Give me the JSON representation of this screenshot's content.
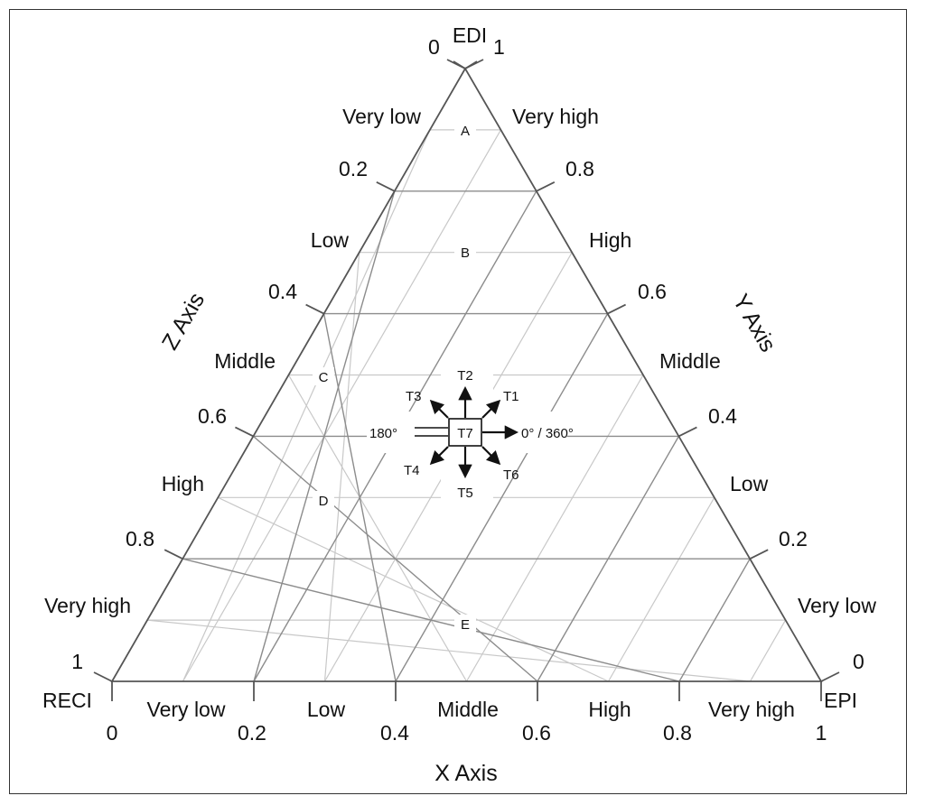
{
  "vertices": {
    "top": "EDI",
    "left": "RECI",
    "right": "EPI"
  },
  "axes": {
    "x": {
      "title": "X Axis",
      "ticks": [
        "0",
        "0.2",
        "0.4",
        "0.6",
        "0.8",
        "1"
      ],
      "levels": [
        "Very low",
        "Low",
        "Middle",
        "High",
        "Very high"
      ]
    },
    "y": {
      "title": "Y Axis",
      "ticks": [
        "0",
        "0.2",
        "0.4",
        "0.6",
        "0.8",
        "1"
      ],
      "levels": [
        "Very low",
        "Low",
        "Middle",
        "High",
        "Very high"
      ]
    },
    "z": {
      "title": "Z Axis",
      "ticks": [
        "0",
        "0.2",
        "0.4",
        "0.6",
        "0.8",
        "1"
      ],
      "levels": [
        "Very low",
        "Low",
        "Middle",
        "High",
        "Very high"
      ]
    }
  },
  "zones": [
    "A",
    "B",
    "C",
    "D",
    "E"
  ],
  "center": {
    "label": "T7",
    "left_angle": "180°",
    "right_angle": "0° / 360°",
    "directions": [
      "T1",
      "T2",
      "T3",
      "T4",
      "T5",
      "T6"
    ]
  },
  "colors": {
    "frame": "#333333",
    "outline": "#555555",
    "grid_major": "#8c8c8c",
    "grid_minor": "#c8c8c8",
    "text": "#111111"
  }
}
